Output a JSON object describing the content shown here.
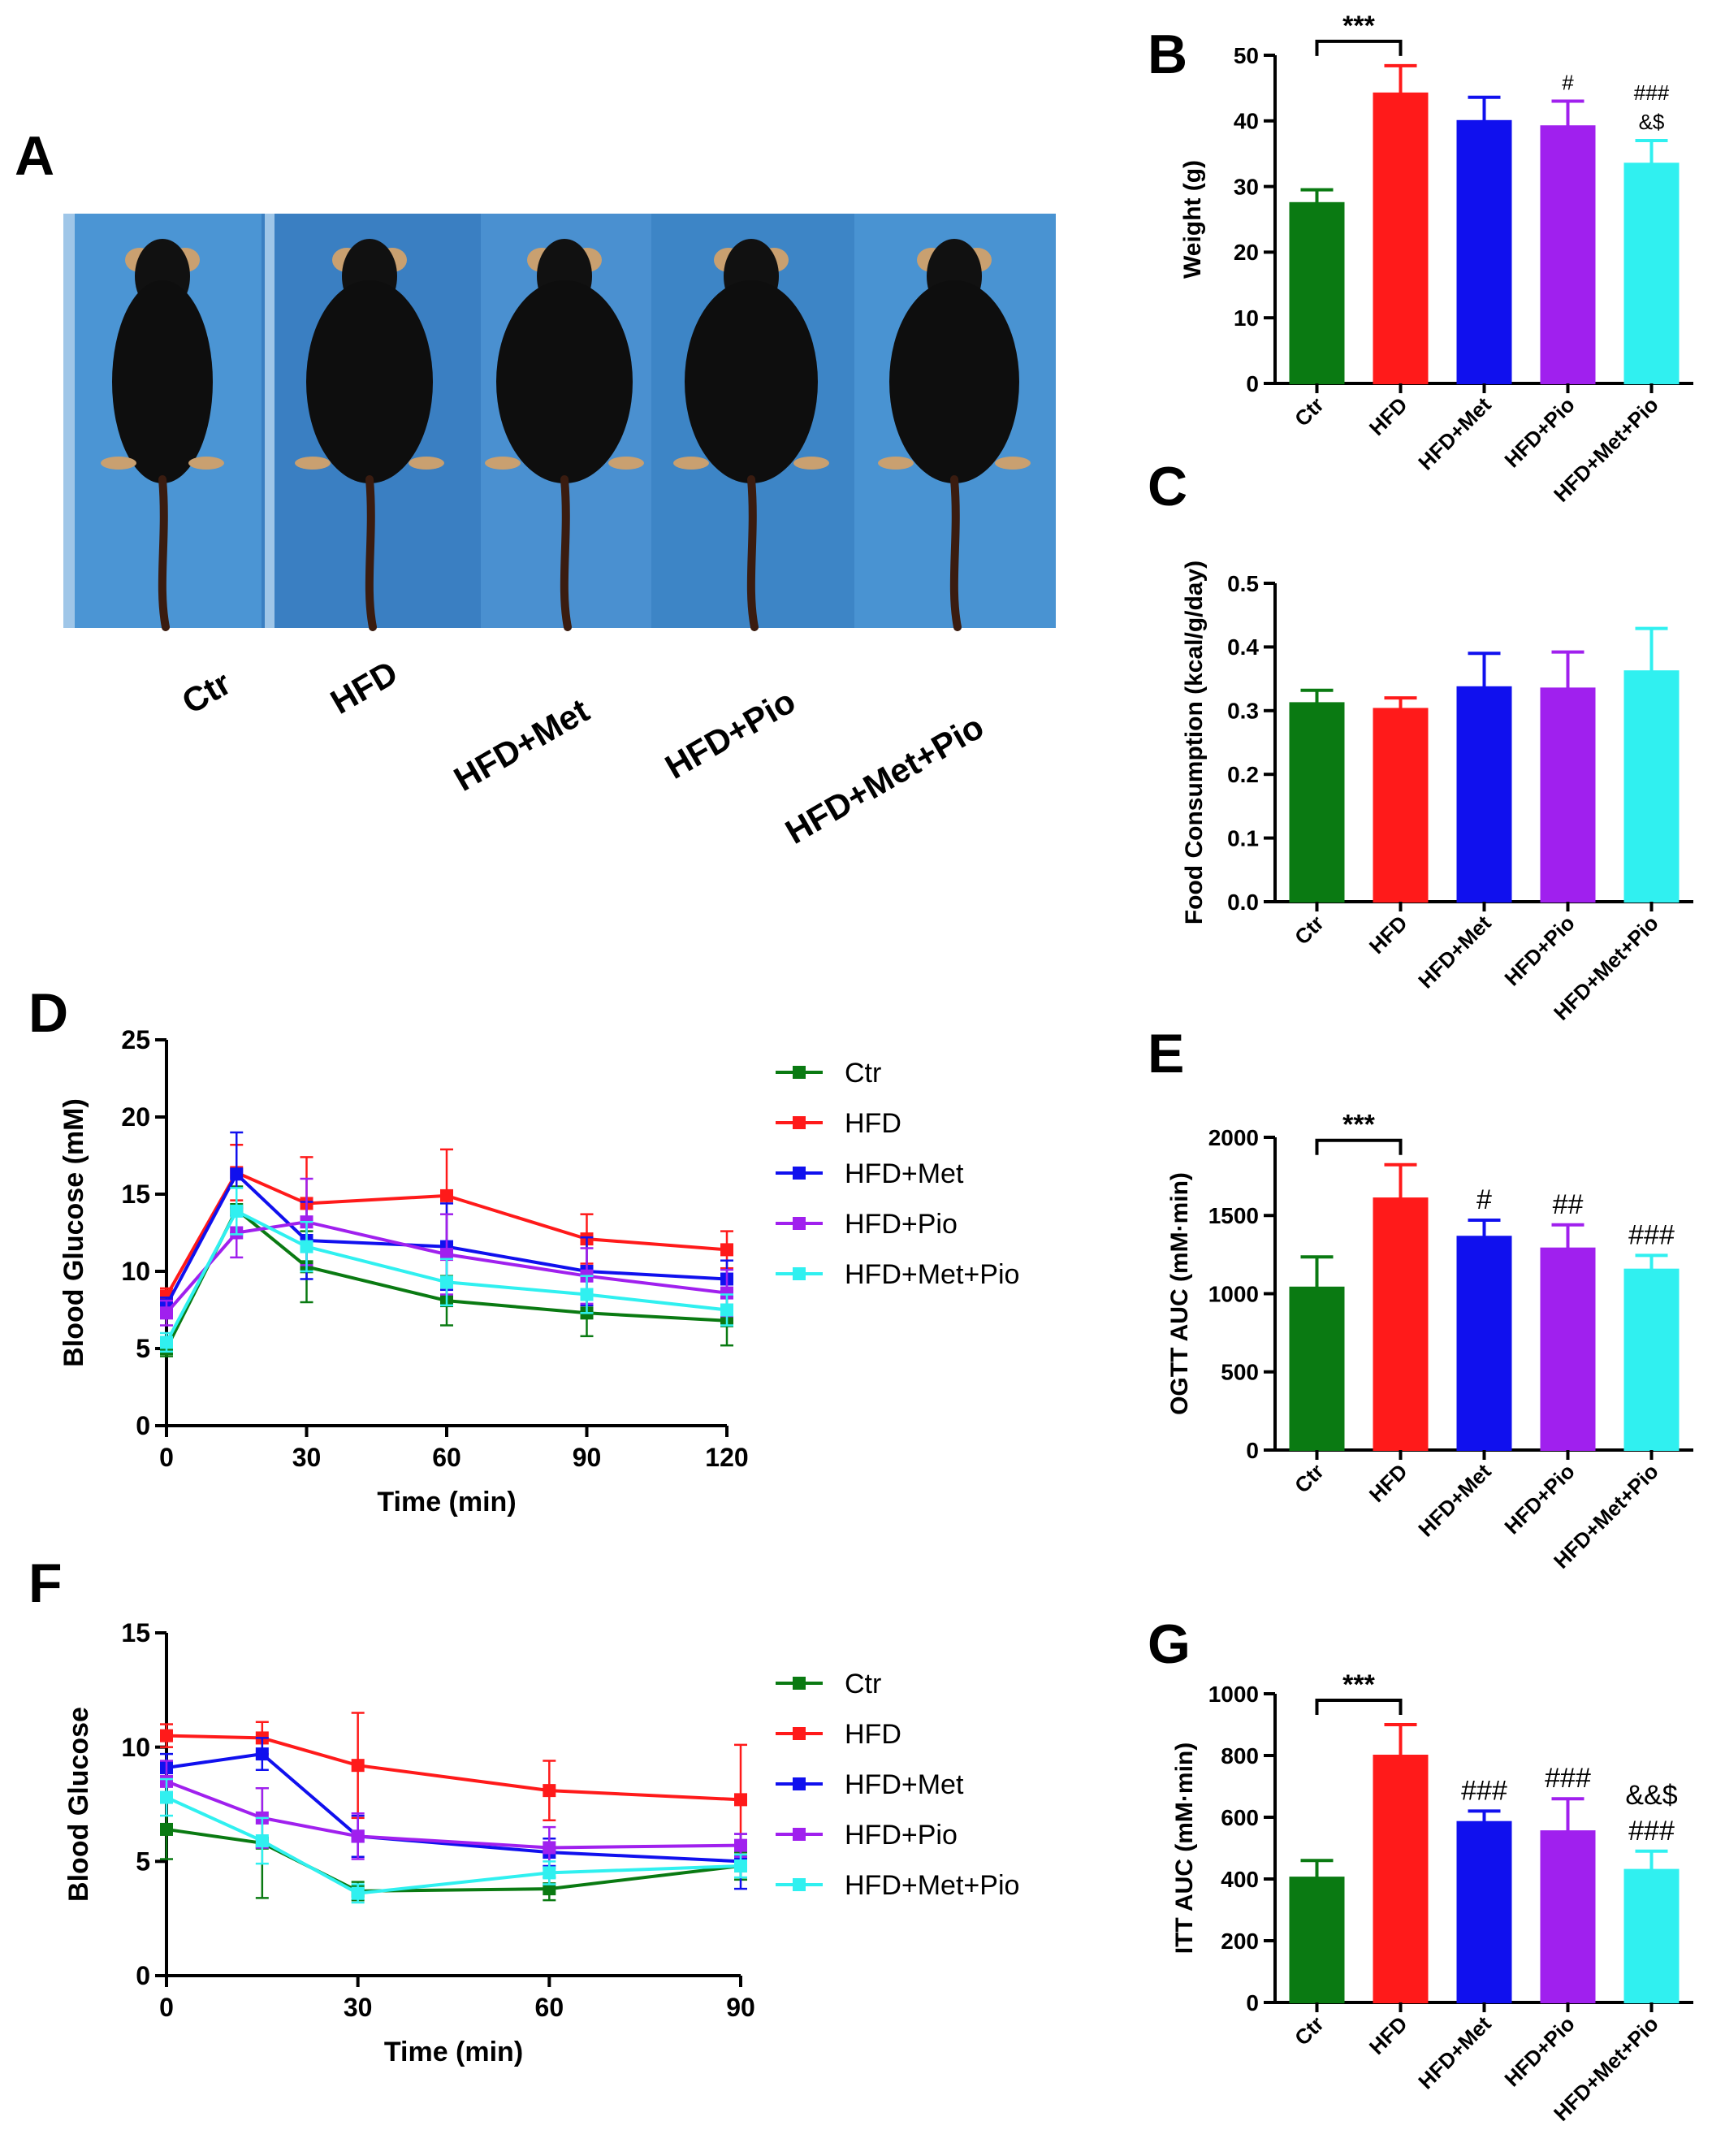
{
  "colors": {
    "Ctr": "#0a7a12",
    "HFD": "#ff1a1a",
    "HFD+Met": "#1010ee",
    "HFD+Pio": "#a020ee",
    "HFD+Met+Pio": "#30f0f0"
  },
  "panels": {
    "A": "A",
    "B": "B",
    "C": "C",
    "D": "D",
    "E": "E",
    "F": "F",
    "G": "G"
  },
  "photo": {
    "group_labels": [
      "Ctr",
      "HFD",
      "HFD+Met",
      "HFD+Pio",
      "HFD+Met+Pio"
    ]
  },
  "chart_data": [
    {
      "id": "B",
      "type": "bar",
      "title": "",
      "xlabel": "",
      "ylabel": "Weight (g)",
      "ylim": [
        0,
        50
      ],
      "yticks": [
        0,
        10,
        20,
        30,
        40,
        50
      ],
      "categories": [
        "Ctr",
        "HFD",
        "HFD+Met",
        "HFD+Pio",
        "HFD+Met+Pio"
      ],
      "values": [
        27.5,
        44.2,
        40.0,
        39.2,
        33.5
      ],
      "errors": [
        2.0,
        4.2,
        3.6,
        3.8,
        3.5
      ],
      "significance": [
        {
          "text": "***",
          "bracket": [
            0,
            1
          ]
        },
        {
          "text": "#",
          "over": 3
        },
        {
          "text": "&$",
          "over": 4
        },
        {
          "text": "###",
          "over": 4
        }
      ]
    },
    {
      "id": "C",
      "type": "bar",
      "title": "",
      "xlabel": "",
      "ylabel": "Food Consumption (kcal/g/day)",
      "ylim": [
        0,
        0.5
      ],
      "yticks": [
        "0.0",
        "0.1",
        "0.2",
        "0.3",
        "0.4",
        "0.5"
      ],
      "categories": [
        "Ctr",
        "HFD",
        "HFD+Met",
        "HFD+Pio",
        "HFD+Met+Pio"
      ],
      "values": [
        0.312,
        0.303,
        0.337,
        0.335,
        0.362
      ],
      "errors": [
        0.02,
        0.017,
        0.053,
        0.057,
        0.067
      ],
      "significance": []
    },
    {
      "id": "D",
      "type": "line",
      "title": "",
      "xlabel": "Time (min)",
      "ylabel": "Blood Glucose (mM)",
      "xlim": [
        0,
        120
      ],
      "xticks": [
        0,
        30,
        60,
        90,
        120
      ],
      "ylim": [
        0,
        25
      ],
      "yticks": [
        0,
        5,
        10,
        15,
        20,
        25
      ],
      "x": [
        0,
        15,
        30,
        60,
        90,
        120
      ],
      "series": [
        {
          "name": "Ctr",
          "values": [
            5.0,
            14.0,
            10.3,
            8.1,
            7.3,
            6.8
          ],
          "errors": [
            0.5,
            1.5,
            2.3,
            1.6,
            1.5,
            1.6
          ]
        },
        {
          "name": "HFD",
          "values": [
            8.4,
            16.4,
            14.4,
            14.9,
            12.1,
            11.4
          ],
          "errors": [
            0.5,
            1.8,
            3.0,
            3.0,
            1.6,
            1.2
          ]
        },
        {
          "name": "HFD+Met",
          "values": [
            7.8,
            16.3,
            12.0,
            11.6,
            10.0,
            9.5
          ],
          "errors": [
            0.5,
            2.7,
            2.5,
            2.8,
            2.2,
            1.2
          ]
        },
        {
          "name": "HFD+Pio",
          "values": [
            7.3,
            12.5,
            13.2,
            11.1,
            9.7,
            8.6
          ],
          "errors": [
            0.8,
            1.6,
            2.8,
            2.6,
            1.8,
            1.5
          ]
        },
        {
          "name": "HFD+Met+Pio",
          "values": [
            5.4,
            13.9,
            11.6,
            9.3,
            8.5,
            7.5
          ],
          "errors": [
            0.6,
            1.5,
            1.6,
            1.5,
            1.2,
            1.0
          ]
        }
      ],
      "legend": [
        "Ctr",
        "HFD",
        "HFD+Met",
        "HFD+Pio",
        "HFD+Met+Pio"
      ]
    },
    {
      "id": "E",
      "type": "bar",
      "title": "",
      "xlabel": "",
      "ylabel": "OGTT AUC (mM·min)",
      "ylim": [
        0,
        2000
      ],
      "yticks": [
        0,
        500,
        1000,
        1500,
        2000
      ],
      "categories": [
        "Ctr",
        "HFD",
        "HFD+Met",
        "HFD+Pio",
        "HFD+Met+Pio"
      ],
      "values": [
        1040,
        1610,
        1365,
        1290,
        1155
      ],
      "errors": [
        195,
        215,
        105,
        150,
        90
      ],
      "significance": [
        {
          "text": "***",
          "bracket": [
            0,
            1
          ]
        },
        {
          "text": "#",
          "over": 2
        },
        {
          "text": "##",
          "over": 3
        },
        {
          "text": "###",
          "over": 4
        }
      ]
    },
    {
      "id": "F",
      "type": "line",
      "title": "",
      "xlabel": "Time (min)",
      "ylabel": "Blood Glucose",
      "xlim": [
        0,
        90
      ],
      "xticks": [
        0,
        30,
        60,
        90
      ],
      "ylim": [
        0,
        15
      ],
      "yticks": [
        0,
        5,
        10,
        15
      ],
      "x": [
        0,
        15,
        30,
        60,
        90
      ],
      "series": [
        {
          "name": "Ctr",
          "values": [
            6.4,
            5.8,
            3.7,
            3.8,
            4.8
          ],
          "errors": [
            1.3,
            2.4,
            0.4,
            0.5,
            0.6
          ]
        },
        {
          "name": "HFD",
          "values": [
            10.5,
            10.4,
            9.2,
            8.1,
            7.7
          ],
          "errors": [
            0.5,
            0.7,
            2.3,
            1.3,
            2.4
          ]
        },
        {
          "name": "HFD+Met",
          "values": [
            9.1,
            9.7,
            6.1,
            5.4,
            5.0
          ],
          "errors": [
            0.6,
            0.7,
            0.9,
            0.6,
            1.2
          ]
        },
        {
          "name": "HFD+Pio",
          "values": [
            8.5,
            6.9,
            6.1,
            5.6,
            5.7
          ],
          "errors": [
            0.9,
            1.3,
            1.0,
            0.9,
            0.5
          ]
        },
        {
          "name": "HFD+Met+Pio",
          "values": [
            7.8,
            5.9,
            3.6,
            4.5,
            4.8
          ],
          "errors": [
            0.8,
            1.0,
            0.4,
            0.5,
            0.5
          ]
        }
      ],
      "legend": [
        "Ctr",
        "HFD",
        "HFD+Met",
        "HFD+Pio",
        "HFD+Met+Pio"
      ]
    },
    {
      "id": "G",
      "type": "bar",
      "title": "",
      "xlabel": "",
      "ylabel": "ITT AUC (mM·min)",
      "ylim": [
        0,
        1000
      ],
      "yticks": [
        0,
        200,
        400,
        600,
        800,
        1000
      ],
      "categories": [
        "Ctr",
        "HFD",
        "HFD+Met",
        "HFD+Pio",
        "HFD+Met+Pio"
      ],
      "values": [
        405,
        800,
        585,
        555,
        430
      ],
      "errors": [
        55,
        100,
        35,
        105,
        60
      ],
      "significance": [
        {
          "text": "***",
          "bracket": [
            0,
            1
          ]
        },
        {
          "text": "###",
          "over": 2
        },
        {
          "text": "###",
          "over": 3
        },
        {
          "text": "###",
          "over": 4
        },
        {
          "text": "&&$",
          "over": 4
        }
      ]
    }
  ]
}
